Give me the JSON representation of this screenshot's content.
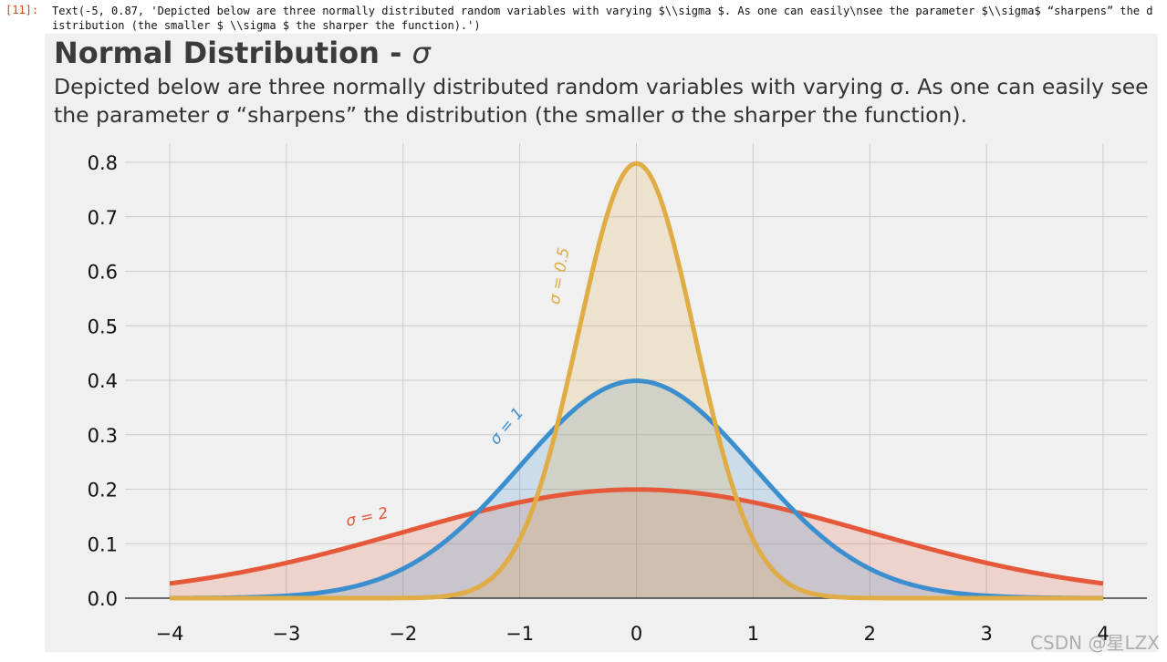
{
  "cell": {
    "prompt": "[11]:",
    "output_text": "Text(-5, 0.87, 'Depicted below are three normally distributed random variables with varying $\\\\sigma $. As one can easily\\nsee the parameter $\\\\sigma$ “sharpens” the distribution (the smaller $ \\\\sigma $ the sharper the function).')"
  },
  "figure": {
    "title_text": "Normal Distribution - ",
    "title_symbol": "σ",
    "subtitle": "Depicted below are three normally distributed random variables with varying σ. As one can easily see the parameter σ “sharpens” the distribution (the smaller σ the sharper the function)."
  },
  "colors": {
    "sigma_2": "#e5593a",
    "sigma_1": "#3b8fcf",
    "sigma_05": "#e0ac45",
    "grid": "#cbcbcb",
    "background": "#f0f0f0"
  },
  "chart_data": {
    "type": "line",
    "title": "Normal Distribution - σ",
    "xlabel": "",
    "ylabel": "",
    "xlim": [
      -4,
      4
    ],
    "ylim": [
      0,
      0.8
    ],
    "grid": true,
    "filled": true,
    "x_ticks": [
      -4,
      -3,
      -2,
      -1,
      0,
      1,
      2,
      3,
      4
    ],
    "x_tick_labels": [
      "−4",
      "−3",
      "−2",
      "−1",
      "0",
      "1",
      "2",
      "3",
      "4"
    ],
    "y_ticks": [
      0.0,
      0.1,
      0.2,
      0.3,
      0.4,
      0.5,
      0.6,
      0.7,
      0.8
    ],
    "y_tick_labels": [
      "0.0",
      "0.1",
      "0.2",
      "0.3",
      "0.4",
      "0.5",
      "0.6",
      "0.7",
      "0.8"
    ],
    "series": [
      {
        "label": "σ = 2",
        "color_key": "sigma_2",
        "mu": 0,
        "sigma": 2,
        "x": [
          -4,
          -3.5,
          -3,
          -2.5,
          -2,
          -1.5,
          -1,
          -0.5,
          0,
          0.5,
          1,
          1.5,
          2,
          2.5,
          3,
          3.5,
          4
        ],
        "y": [
          0.027,
          0.043,
          0.065,
          0.091,
          0.121,
          0.151,
          0.176,
          0.193,
          0.199,
          0.193,
          0.176,
          0.151,
          0.121,
          0.091,
          0.065,
          0.043,
          0.027
        ]
      },
      {
        "label": "σ = 1",
        "color_key": "sigma_1",
        "mu": 0,
        "sigma": 1,
        "x": [
          -4,
          -3.5,
          -3,
          -2.5,
          -2,
          -1.5,
          -1,
          -0.5,
          0,
          0.5,
          1,
          1.5,
          2,
          2.5,
          3,
          3.5,
          4
        ],
        "y": [
          0.0,
          0.001,
          0.004,
          0.018,
          0.054,
          0.13,
          0.242,
          0.352,
          0.399,
          0.352,
          0.242,
          0.13,
          0.054,
          0.018,
          0.004,
          0.001,
          0.0
        ]
      },
      {
        "label": "σ = 0.5",
        "color_key": "sigma_05",
        "mu": 0,
        "sigma": 0.5,
        "x": [
          -4,
          -3.5,
          -3,
          -2.5,
          -2,
          -1.5,
          -1,
          -0.75,
          -0.5,
          -0.25,
          0,
          0.25,
          0.5,
          0.75,
          1,
          1.5,
          2,
          2.5,
          3,
          3.5,
          4
        ],
        "y": [
          0.0,
          0.0,
          0.0,
          0.0,
          0.0,
          0.009,
          0.108,
          0.259,
          0.484,
          0.704,
          0.798,
          0.704,
          0.484,
          0.259,
          0.108,
          0.009,
          0.0,
          0.0,
          0.0,
          0.0,
          0.0
        ]
      }
    ]
  },
  "watermark": "CSDN @星LZX"
}
